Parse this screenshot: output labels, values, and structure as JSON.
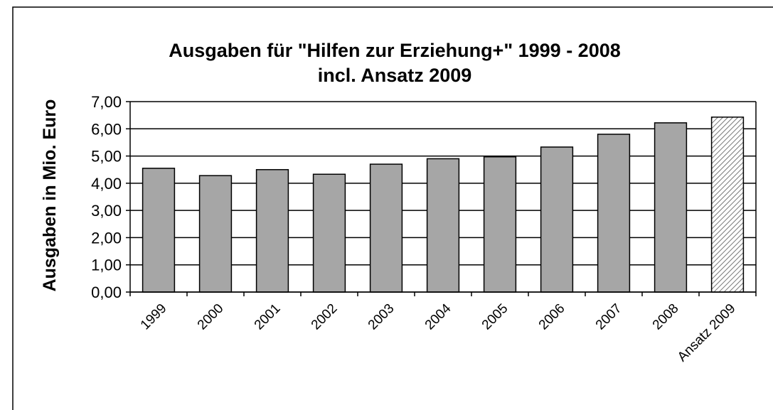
{
  "chart_data": {
    "type": "bar",
    "title": "Ausgaben für \"Hilfen zur Erziehung+\" 1999 - 2008",
    "subtitle": "incl. Ansatz  2009",
    "y_label": "Ausgaben in Mio. Euro",
    "categories": [
      "1999",
      "2000",
      "2001",
      "2002",
      "2003",
      "2004",
      "2005",
      "2006",
      "2007",
      "2008",
      "Ansatz 2009"
    ],
    "values": [
      4.55,
      4.28,
      4.5,
      4.33,
      4.7,
      4.9,
      4.97,
      5.33,
      5.8,
      6.22,
      6.43
    ],
    "color": "#a6a6a6",
    "patterns": [
      null,
      null,
      null,
      null,
      null,
      null,
      null,
      null,
      null,
      null,
      "hatch"
    ],
    "ylim": [
      0,
      7
    ],
    "yticks": [
      {
        "value": 0,
        "label": "0,00"
      },
      {
        "value": 1,
        "label": "1,00"
      },
      {
        "value": 2,
        "label": "2,00"
      },
      {
        "value": 3,
        "label": "3,00"
      },
      {
        "value": 4,
        "label": "4,00"
      },
      {
        "value": 5,
        "label": "5,00"
      },
      {
        "value": 6,
        "label": "6,00"
      },
      {
        "value": 7,
        "label": "7,00"
      }
    ],
    "grid": true
  }
}
